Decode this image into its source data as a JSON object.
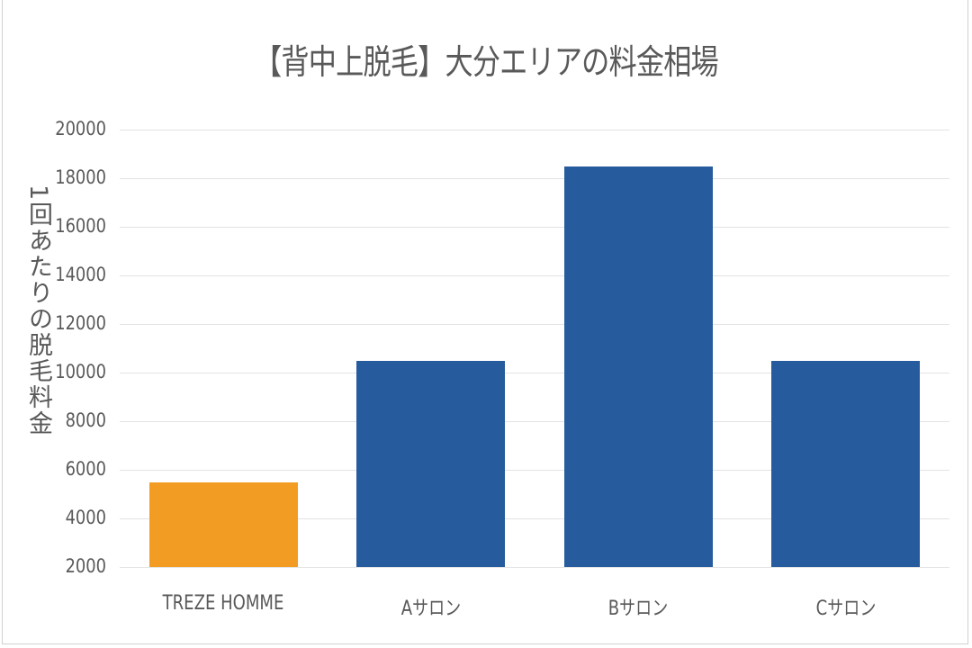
{
  "chart_data": {
    "type": "bar",
    "title": "【背中上脱毛】大分エリアの料金相場",
    "xlabel": "",
    "ylabel": "1回あたりの脱毛料金",
    "categories": [
      "TREZE HOMME",
      "Aサロン",
      "Bサロン",
      "Cサロン"
    ],
    "values": [
      5500,
      10500,
      18500,
      10500
    ],
    "bar_colors": [
      "#F39C24",
      "#265B9E",
      "#265B9E",
      "#265B9E"
    ],
    "ylim": [
      2000,
      20000
    ],
    "yticks": [
      "20000",
      "18000",
      "16000",
      "14000",
      "12000",
      "10000",
      "8000",
      "6000",
      "4000",
      "2000"
    ],
    "grid": true,
    "legend": "none"
  }
}
